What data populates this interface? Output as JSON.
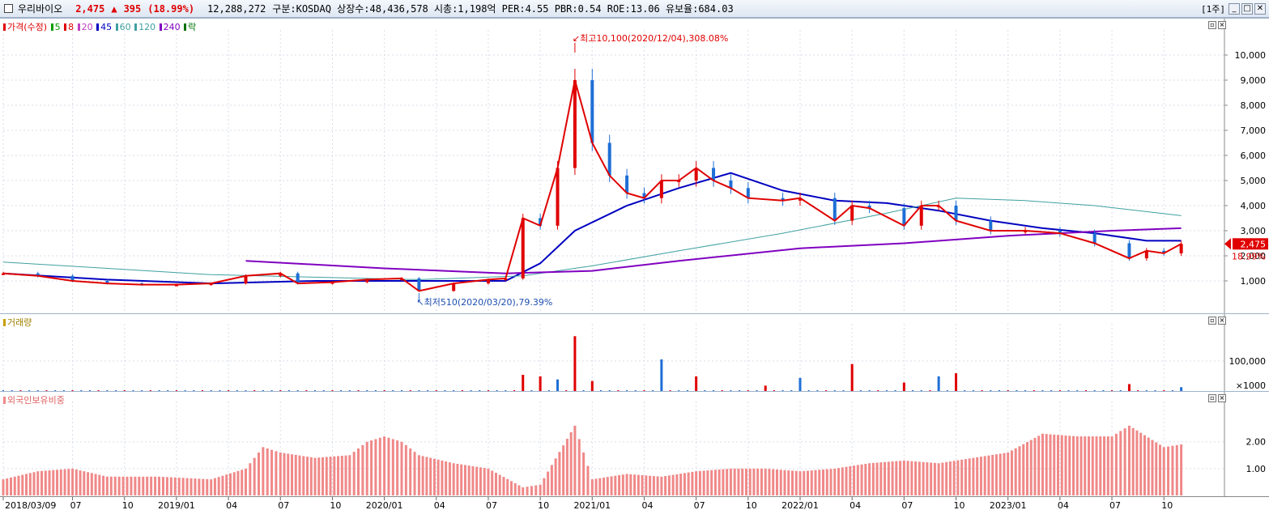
{
  "header": {
    "stock_name": "우리바이오",
    "price": "2,475",
    "change_arrow": "▲",
    "change": "395",
    "change_pct": "(18.99%)",
    "volume": "12,288,272",
    "info": "구분:KOSDAQ 상장수:48,436,578 시총:1,198억 PER:4.55 PBR:0.54 ROE:13.06 유보율:684.03",
    "period": "[1주]",
    "window_buttons": [
      "_",
      "□",
      "✕"
    ]
  },
  "legend": {
    "price_label": "가격(수정)",
    "ma": [
      {
        "label": "5",
        "color": "#00a000"
      },
      {
        "label": "8",
        "color": "#e00000"
      },
      {
        "label": "20",
        "color": "#c040c0"
      },
      {
        "label": "45",
        "color": "#0000c0"
      },
      {
        "label": "60",
        "color": "#40a0a0"
      },
      {
        "label": "120",
        "color": "#40a0a0"
      },
      {
        "label": "240",
        "color": "#8000c0"
      }
    ],
    "extra_label": "락",
    "volume_label": "거래량",
    "foreign_label": "외국인보유비중"
  },
  "annotations": {
    "high": "최고10,100(2020/12/04),308.08%",
    "low": "최저510(2020/03/20),79.39%",
    "current_price_tag": "2,475",
    "current_pct_tag": "18.99%"
  },
  "colors": {
    "up": "#e00000",
    "down": "#1e6fd6",
    "ma8": "#e00000",
    "ma5": "#00a000",
    "ma20": "#c040c0",
    "ma45": "#0000c0",
    "ma120": "#40a0a0",
    "ma240": "#8000c0",
    "ratio_bar": "#f08888",
    "grid": "#d8dee8"
  },
  "chart_data": [
    {
      "type": "line",
      "title": "가격(수정)",
      "y_ticks": [
        "1,000",
        "2,000",
        "3,000",
        "4,000",
        "5,000",
        "6,000",
        "7,000",
        "8,000",
        "9,000",
        "10,000"
      ],
      "ylim": [
        0,
        11000
      ],
      "x_ticks": [
        "2018/03/09",
        "07",
        "10",
        "2019/01",
        "04",
        "07",
        "10",
        "2020/01",
        "04",
        "07",
        "10",
        "2021/01",
        "04",
        "07",
        "10",
        "2022/01",
        "04",
        "07",
        "10",
        "2023/01",
        "04",
        "07",
        "10"
      ],
      "x_dates": [
        "2018-03",
        "2018-07",
        "2018-10",
        "2019-01",
        "2019-04",
        "2019-07",
        "2019-10",
        "2020-01",
        "2020-04",
        "2020-07",
        "2020-10",
        "2021-01",
        "2021-04",
        "2021-07",
        "2021-10",
        "2022-01",
        "2022-04",
        "2022-07",
        "2022-10",
        "2023-01",
        "2023-04",
        "2023-07",
        "2023-10"
      ],
      "series": [
        {
          "name": "가격(수정)",
          "points": [
            [
              "2018-03",
              1300
            ],
            [
              "2018-05",
              1200
            ],
            [
              "2018-07",
              1000
            ],
            [
              "2018-09",
              900
            ],
            [
              "2018-11",
              850
            ],
            [
              "2019-01",
              850
            ],
            [
              "2019-03",
              900
            ],
            [
              "2019-05",
              1200
            ],
            [
              "2019-07",
              1300
            ],
            [
              "2019-08",
              900
            ],
            [
              "2019-10",
              950
            ],
            [
              "2019-12",
              1050
            ],
            [
              "2020-02",
              1100
            ],
            [
              "2020-03",
              600
            ],
            [
              "2020-05",
              900
            ],
            [
              "2020-07",
              1050
            ],
            [
              "2020-08",
              1100
            ],
            [
              "2020-09",
              3500
            ],
            [
              "2020-10",
              3200
            ],
            [
              "2020-11",
              5500
            ],
            [
              "2020-12",
              9000
            ],
            [
              "2021-01",
              6500
            ],
            [
              "2021-02",
              5200
            ],
            [
              "2021-03",
              4500
            ],
            [
              "2021-04",
              4300
            ],
            [
              "2021-05",
              5000
            ],
            [
              "2021-06",
              5000
            ],
            [
              "2021-07",
              5500
            ],
            [
              "2021-08",
              5000
            ],
            [
              "2021-09",
              4700
            ],
            [
              "2021-10",
              4300
            ],
            [
              "2021-12",
              4200
            ],
            [
              "2022-01",
              4300
            ],
            [
              "2022-03",
              3400
            ],
            [
              "2022-04",
              4000
            ],
            [
              "2022-05",
              3900
            ],
            [
              "2022-07",
              3200
            ],
            [
              "2022-08",
              4000
            ],
            [
              "2022-09",
              4000
            ],
            [
              "2022-10",
              3400
            ],
            [
              "2022-12",
              3000
            ],
            [
              "2023-02",
              3000
            ],
            [
              "2023-04",
              2900
            ],
            [
              "2023-06",
              2500
            ],
            [
              "2023-08",
              1900
            ],
            [
              "2023-09",
              2200
            ],
            [
              "2023-10",
              2100
            ],
            [
              "2023-11",
              2475
            ]
          ]
        },
        {
          "name": "45",
          "points": [
            [
              "2018-03",
              1300
            ],
            [
              "2018-09",
              1050
            ],
            [
              "2019-03",
              900
            ],
            [
              "2019-09",
              1000
            ],
            [
              "2020-03",
              1000
            ],
            [
              "2020-08",
              1000
            ],
            [
              "2020-10",
              1700
            ],
            [
              "2020-12",
              3000
            ],
            [
              "2021-03",
              4000
            ],
            [
              "2021-06",
              4700
            ],
            [
              "2021-09",
              5300
            ],
            [
              "2021-12",
              4600
            ],
            [
              "2022-03",
              4200
            ],
            [
              "2022-06",
              4100
            ],
            [
              "2022-09",
              3800
            ],
            [
              "2022-12",
              3400
            ],
            [
              "2023-03",
              3100
            ],
            [
              "2023-06",
              2900
            ],
            [
              "2023-09",
              2600
            ],
            [
              "2023-11",
              2600
            ]
          ]
        },
        {
          "name": "120",
          "points": [
            [
              "2018-03",
              1750
            ],
            [
              "2018-09",
              1500
            ],
            [
              "2019-03",
              1250
            ],
            [
              "2019-09",
              1150
            ],
            [
              "2020-03",
              1050
            ],
            [
              "2020-09",
              1200
            ],
            [
              "2021-01",
              1600
            ],
            [
              "2021-06",
              2200
            ],
            [
              "2021-12",
              2900
            ],
            [
              "2022-06",
              3700
            ],
            [
              "2022-10",
              4300
            ],
            [
              "2023-02",
              4200
            ],
            [
              "2023-06",
              4000
            ],
            [
              "2023-11",
              3600
            ]
          ]
        },
        {
          "name": "240",
          "points": [
            [
              "2019-05",
              1800
            ],
            [
              "2020-01",
              1500
            ],
            [
              "2020-08",
              1300
            ],
            [
              "2021-01",
              1400
            ],
            [
              "2021-06",
              1800
            ],
            [
              "2022-01",
              2300
            ],
            [
              "2022-07",
              2500
            ],
            [
              "2023-01",
              2800
            ],
            [
              "2023-07",
              3000
            ],
            [
              "2023-11",
              3100
            ]
          ]
        }
      ]
    },
    {
      "type": "bar",
      "title": "거래량",
      "y_ticks": [
        "100,000"
      ],
      "y_unit": "×1000",
      "ylim": [
        0,
        220000
      ],
      "series": [
        {
          "name": "거래량",
          "points": [
            [
              "2020-09",
              55000
            ],
            [
              "2020-10",
              50000
            ],
            [
              "2020-11",
              40000
            ],
            [
              "2020-12",
              180000
            ],
            [
              "2021-01",
              35000
            ],
            [
              "2021-05",
              105000
            ],
            [
              "2021-07",
              50000
            ],
            [
              "2021-11",
              20000
            ],
            [
              "2022-01",
              45000
            ],
            [
              "2022-04",
              90000
            ],
            [
              "2022-07",
              30000
            ],
            [
              "2022-09",
              50000
            ],
            [
              "2022-10",
              60000
            ],
            [
              "2023-08",
              25000
            ],
            [
              "2023-11",
              15000
            ]
          ]
        }
      ]
    },
    {
      "type": "bar",
      "title": "외국인보유비중",
      "y_ticks": [
        "1.00",
        "2.00"
      ],
      "ylim": [
        0,
        3.5
      ],
      "series": [
        {
          "name": "외국인보유비중",
          "points": [
            [
              "2018-03",
              0.6
            ],
            [
              "2018-05",
              0.9
            ],
            [
              "2018-07",
              1.0
            ],
            [
              "2018-09",
              0.7
            ],
            [
              "2018-12",
              0.7
            ],
            [
              "2019-03",
              0.6
            ],
            [
              "2019-05",
              1.0
            ],
            [
              "2019-06",
              1.8
            ],
            [
              "2019-07",
              1.6
            ],
            [
              "2019-09",
              1.4
            ],
            [
              "2019-11",
              1.5
            ],
            [
              "2019-12",
              2.0
            ],
            [
              "2020-01",
              2.2
            ],
            [
              "2020-02",
              2.0
            ],
            [
              "2020-03",
              1.5
            ],
            [
              "2020-05",
              1.2
            ],
            [
              "2020-07",
              1.0
            ],
            [
              "2020-09",
              0.3
            ],
            [
              "2020-10",
              0.4
            ],
            [
              "2020-12",
              2.6
            ],
            [
              "2021-01",
              0.6
            ],
            [
              "2021-03",
              0.8
            ],
            [
              "2021-05",
              0.7
            ],
            [
              "2021-07",
              0.9
            ],
            [
              "2021-09",
              1.0
            ],
            [
              "2021-11",
              1.0
            ],
            [
              "2022-01",
              0.9
            ],
            [
              "2022-03",
              1.0
            ],
            [
              "2022-05",
              1.2
            ],
            [
              "2022-07",
              1.3
            ],
            [
              "2022-09",
              1.2
            ],
            [
              "2022-11",
              1.4
            ],
            [
              "2023-01",
              1.6
            ],
            [
              "2023-03",
              2.3
            ],
            [
              "2023-05",
              2.2
            ],
            [
              "2023-07",
              2.2
            ],
            [
              "2023-08",
              2.6
            ],
            [
              "2023-10",
              1.8
            ],
            [
              "2023-11",
              1.9
            ]
          ]
        }
      ]
    }
  ]
}
